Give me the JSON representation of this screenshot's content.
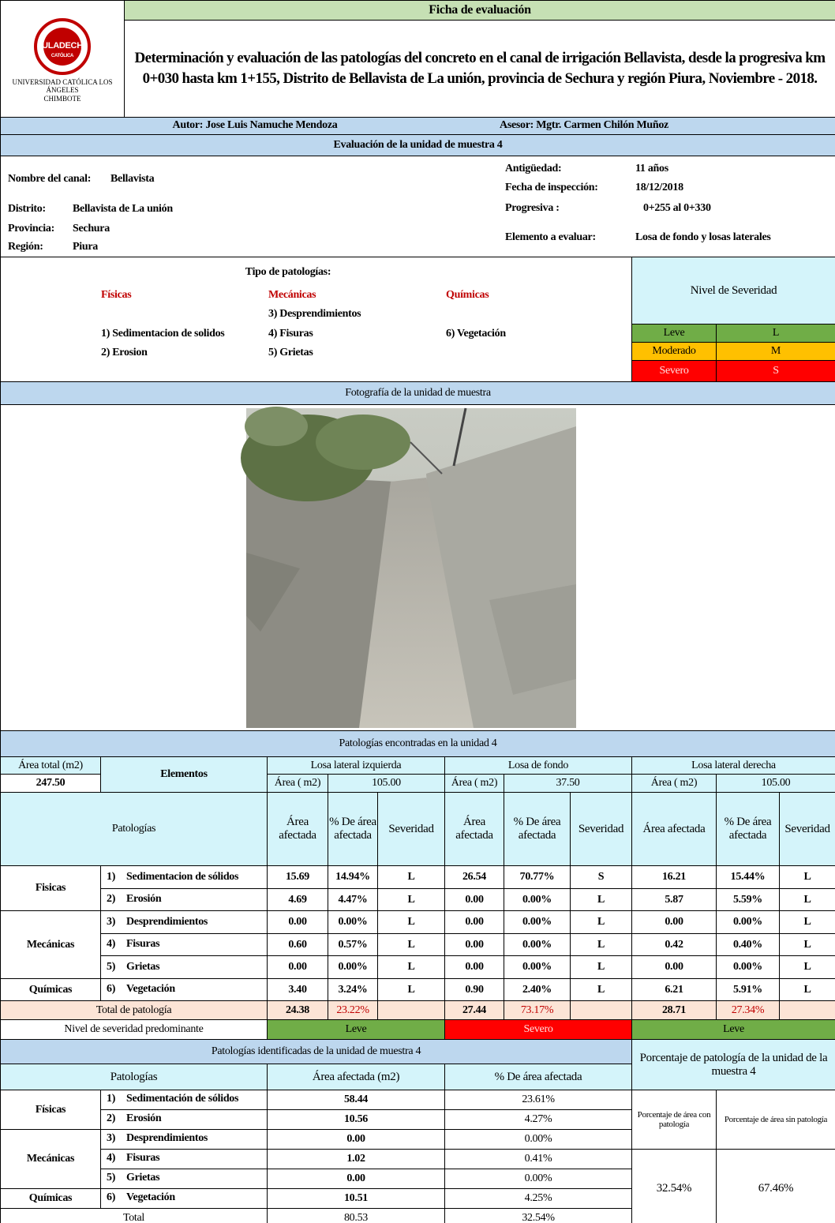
{
  "header": {
    "title": "Ficha de evaluación",
    "subtitle": "Determinación y evaluación de las patologías del concreto en el canal de irrigación Bellavista, desde la progresiva km 0+030 hasta km 1+155,  Distrito de Bellavista de La unión, provincia de Sechura y región Piura, Noviembre - 2018.",
    "logo_text": "ULADECH",
    "logo_sub": "CATÓLICA",
    "university": "UNIVERSIDAD CATÓLICA LOS ÁNGELES",
    "city": "CHIMBOTE",
    "author": "Autor:  Jose Luis Namuche Mendoza",
    "advisor": "Asesor: Mgtr. Carmen Chilón Muñoz"
  },
  "section_title": "Evaluación de la unidad de muestra 4",
  "info": {
    "left": [
      {
        "label": "Nombre del canal:",
        "value": "Bellavista"
      },
      {
        "label": "Distrito:",
        "value": "Bellavista de La unión"
      },
      {
        "label": "Provincia:",
        "value": "Sechura"
      },
      {
        "label": "Región:",
        "value": "Piura"
      }
    ],
    "right": [
      {
        "label": "Antigüedad:",
        "value": "11 años"
      },
      {
        "label": "Fecha de inspección:",
        "value": "18/12/2018"
      },
      {
        "label": "Progresiva :",
        "value": "0+255 al 0+330"
      },
      {
        "label": "Elemento a evaluar:",
        "value": "Losa de fondo y losas laterales"
      }
    ]
  },
  "types": {
    "title": "Tipo de patologías:",
    "groups": [
      {
        "name": "Físicas",
        "items": [
          "1) Sedimentacion de solidos",
          "2) Erosion"
        ]
      },
      {
        "name": "Mecánicas",
        "items": [
          "3) Desprendimientos",
          "4) Fisuras",
          "5) Grietas"
        ]
      },
      {
        "name": "Químicas",
        "items": [
          "6) Vegetación"
        ]
      }
    ]
  },
  "severity": {
    "title": "Nivel de Severidad",
    "levels": [
      {
        "name": "Leve",
        "code": "L"
      },
      {
        "name": "Moderado",
        "code": "M"
      },
      {
        "name": "Severo",
        "code": "S"
      }
    ]
  },
  "photo_title": "Fotografía de la unidad de muestra",
  "found": {
    "title": "Patologías encontradas en la unidad 4",
    "area_total_label": "Área total (m2)",
    "area_total": "247.50",
    "elements_label": "Elementos",
    "pathologies_label": "Patologías",
    "elements": [
      {
        "name": "Losa lateral izquierda",
        "area_label": "Área ( m2)",
        "area": "105.00",
        "columns": [
          "Área afectada",
          "% De área afectada",
          "Severidad"
        ]
      },
      {
        "name": "Losa de fondo",
        "area_label": "Área ( m2)",
        "area": "37.50",
        "columns": [
          "Área afectada",
          "% De área afectada",
          "Severidad"
        ]
      },
      {
        "name": "Losa lateral derecha",
        "area_label": "Área ( m2)",
        "area": "105.00",
        "columns": [
          "Área afectada",
          "% De área afectada",
          "Severidad"
        ]
      }
    ],
    "groups": [
      "Fisicas",
      "Mecánicas",
      "Químicas"
    ],
    "rows": [
      {
        "num": "1)",
        "name": "Sedimentacion de sólidos",
        "cells": [
          "15.69",
          "14.94%",
          "L",
          "26.54",
          "70.77%",
          "S",
          "16.21",
          "15.44%",
          "L"
        ]
      },
      {
        "num": "2)",
        "name": "Erosión",
        "cells": [
          "4.69",
          "4.47%",
          "L",
          "0.00",
          "0.00%",
          "L",
          "5.87",
          "5.59%",
          "L"
        ]
      },
      {
        "num": "3)",
        "name": "Desprendimientos",
        "cells": [
          "0.00",
          "0.00%",
          "L",
          "0.00",
          "0.00%",
          "L",
          "0.00",
          "0.00%",
          "L"
        ]
      },
      {
        "num": "4)",
        "name": "Fisuras",
        "cells": [
          "0.60",
          "0.57%",
          "L",
          "0.00",
          "0.00%",
          "L",
          "0.42",
          "0.40%",
          "L"
        ]
      },
      {
        "num": "5)",
        "name": "Grietas",
        "cells": [
          "0.00",
          "0.00%",
          "L",
          "0.00",
          "0.00%",
          "L",
          "0.00",
          "0.00%",
          "L"
        ]
      },
      {
        "num": "6)",
        "name": "Vegetación",
        "cells": [
          "3.40",
          "3.24%",
          "L",
          "0.90",
          "2.40%",
          "L",
          "6.21",
          "5.91%",
          "L"
        ]
      }
    ],
    "total": {
      "label": "Total de patología",
      "cells": [
        [
          "24.38",
          "23.22%"
        ],
        [
          "27.44",
          "73.17%"
        ],
        [
          "28.71",
          "27.34%"
        ]
      ]
    },
    "predominant": {
      "label": "Nivel de severidad predominante",
      "values": [
        "Leve",
        "Severo",
        "Leve"
      ]
    }
  },
  "summary": {
    "title": "Patologías identificadas de la unidad de muestra 4",
    "headers": [
      "Patologías",
      "Área afectada (m2)",
      "% De área afectada"
    ],
    "groups": [
      "Físicas",
      "Mecánicas",
      "Químicas"
    ],
    "rows": [
      {
        "num": "1)",
        "name": "Sedimentación de sólidos",
        "area": "58.44",
        "pct": "23.61%"
      },
      {
        "num": "2)",
        "name": "Erosión",
        "area": "10.56",
        "pct": "4.27%"
      },
      {
        "num": "3)",
        "name": "Desprendimientos",
        "area": "0.00",
        "pct": "0.00%"
      },
      {
        "num": "4)",
        "name": "Fisuras",
        "area": "1.02",
        "pct": "0.41%"
      },
      {
        "num": "5)",
        "name": "Grietas",
        "area": "0.00",
        "pct": "0.00%"
      },
      {
        "num": "6)",
        "name": "Vegetación",
        "area": "10.51",
        "pct": "4.25%"
      }
    ],
    "total": {
      "label": "Total",
      "area": "80.53",
      "pct": "32.54%"
    }
  },
  "percentage": {
    "title": "Porcentaje de patología de la unidad de la muestra 4",
    "labels": [
      "Porcentaje de área con patología",
      "Porcentaje de área sin patología"
    ],
    "values": [
      "32.54%",
      "67.46%"
    ]
  }
}
